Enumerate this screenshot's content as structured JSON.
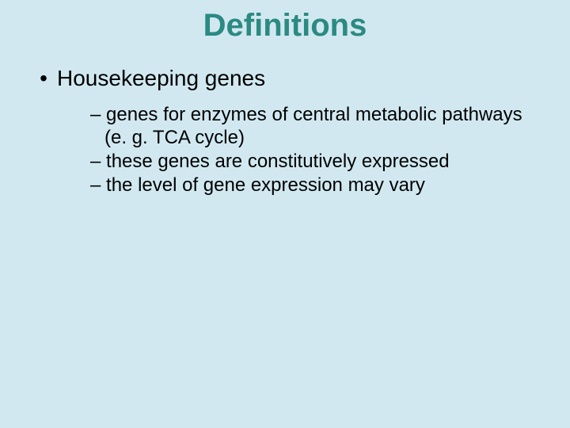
{
  "slide": {
    "background_color": "#d1e8f0",
    "title": {
      "text": "Definitions",
      "color": "#2b8a82",
      "font_family": "Arial Black",
      "font_size_pt": 40,
      "font_weight": 900,
      "align": "center"
    },
    "body": {
      "font_family": "Arial",
      "text_color": "#000000",
      "l1_font_size_pt": 28,
      "l2_font_size_pt": 24,
      "l1_marker": "•",
      "l2_marker": "–",
      "items": [
        {
          "text": "Housekeeping genes",
          "sub": [
            "genes for enzymes of central metabolic pathways (e. g. TCA cycle)",
            "these genes are constitutively expressed",
            "the level of gene expression may vary"
          ]
        }
      ]
    }
  }
}
